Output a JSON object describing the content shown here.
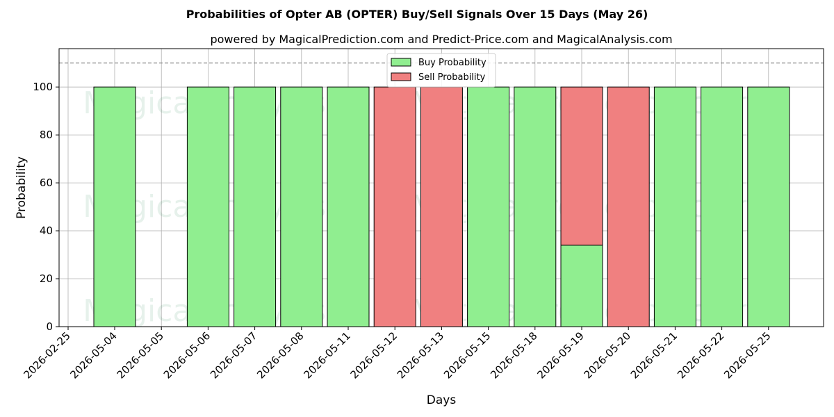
{
  "chart_data": {
    "type": "bar",
    "stacked": true,
    "title": "Probabilities of Opter AB (OPTER) Buy/Sell Signals Over 15 Days (May 26)",
    "subtitle": "powered by MagicalPrediction.com and Predict-Price.com and MagicalAnalysis.com",
    "xlabel": "Days",
    "ylabel": "Probability",
    "ylim": [
      0,
      116
    ],
    "yticks": [
      0,
      20,
      40,
      60,
      80,
      100
    ],
    "grid": true,
    "legend_position": "top-center",
    "reference_line": {
      "value": 110,
      "style": "dashed"
    },
    "x_axis_extra_tick": "2026-02-25",
    "categories": [
      "2026-05-04",
      "2026-05-05",
      "2026-05-06",
      "2026-05-07",
      "2026-05-08",
      "2026-05-11",
      "2026-05-12",
      "2026-05-13",
      "2026-05-15",
      "2026-05-18",
      "2026-05-19",
      "2026-05-20",
      "2026-05-21",
      "2026-05-22",
      "2026-05-25"
    ],
    "series": [
      {
        "name": "Buy Probability",
        "color": "#90ee90",
        "values": [
          100,
          0,
          100,
          100,
          100,
          100,
          0,
          0,
          100,
          100,
          34,
          0,
          100,
          100,
          100
        ]
      },
      {
        "name": "Sell Probability",
        "color": "#f08080",
        "values": [
          0,
          0,
          0,
          0,
          0,
          0,
          100,
          100,
          0,
          0,
          66,
          100,
          0,
          0,
          0
        ]
      }
    ],
    "watermarks": [
      "MagicalAnalysis.com",
      "MagicalPrediction.com"
    ]
  }
}
